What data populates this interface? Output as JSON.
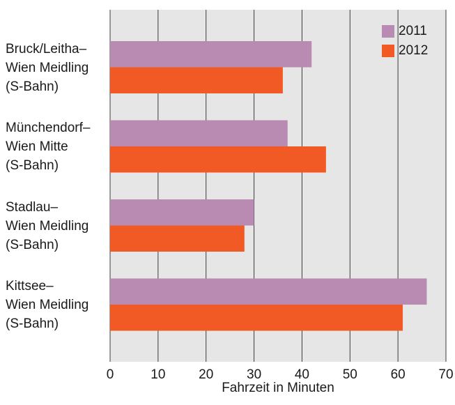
{
  "chart_data": {
    "type": "bar",
    "orientation": "horizontal",
    "categories": [
      [
        "Bruck/Leitha–",
        "Wien Meidling",
        "(S-Bahn)"
      ],
      [
        "Münchendorf–",
        "Wien Mitte",
        "(S-Bahn)"
      ],
      [
        "Stadlau–",
        "Wien Meidling",
        "(S-Bahn)"
      ],
      [
        "Kittsee–",
        "Wien Meidling",
        "(S-Bahn)"
      ]
    ],
    "series": [
      {
        "name": "2011",
        "color": "#b98bb2",
        "values": [
          42,
          37,
          30,
          66
        ]
      },
      {
        "name": "2012",
        "color": "#f15a24",
        "values": [
          36,
          45,
          28,
          61
        ]
      }
    ],
    "title": "",
    "xlabel": "Fahrzeit in Minuten",
    "ylabel": "",
    "xlim": [
      0,
      70
    ],
    "xticks": [
      0,
      10,
      20,
      30,
      40,
      50,
      60,
      70
    ],
    "grid": true,
    "legend_position": "top-right",
    "background_color": "#e6e6e6",
    "grid_color": "#3c3c3c"
  }
}
